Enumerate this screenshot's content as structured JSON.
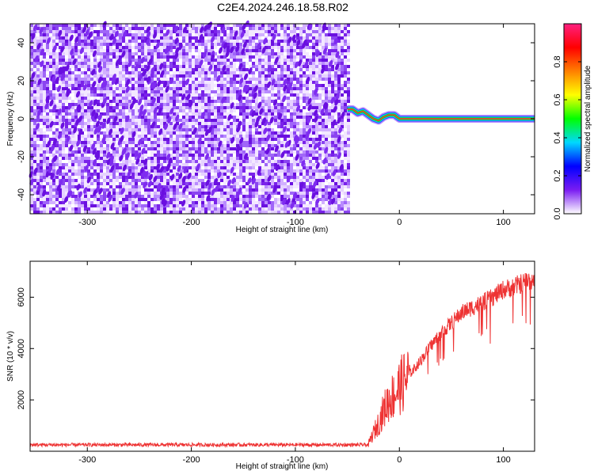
{
  "title": "C2E4.2024.246.18.58.R02",
  "chart_data": [
    {
      "type": "heatmap",
      "xlabel": "Height of straight line (km)",
      "ylabel": "Frequency (Hz)",
      "xlim": [
        -355,
        130
      ],
      "ylim": [
        -50,
        50
      ],
      "xticks": [
        -300,
        -200,
        -100,
        0,
        100
      ],
      "yticks": [
        -40,
        -20,
        0,
        20,
        40
      ],
      "noise_region": {
        "x_start": -355,
        "x_end": -50
      },
      "signal_trace": {
        "x": [
          -50,
          -45,
          -40,
          -35,
          -30,
          -25,
          -20,
          -15,
          -10,
          -5,
          0,
          10,
          30,
          60,
          100,
          130
        ],
        "y": [
          5,
          5,
          3,
          4,
          2,
          0,
          -1,
          1,
          2,
          2,
          0,
          0,
          0,
          0,
          0,
          0
        ]
      },
      "colorbar": {
        "label": "Normalized spectral amplitude",
        "range": [
          0,
          1
        ],
        "ticks": [
          0.0,
          0.2,
          0.4,
          0.6,
          0.8
        ],
        "colormap": "rainbow",
        "colors": [
          "#ffffff",
          "#7a1cf2",
          "#0000ff",
          "#00d8ff",
          "#00ff00",
          "#ffff00",
          "#ff8000",
          "#ff0000",
          "#ff2080"
        ]
      }
    },
    {
      "type": "line",
      "xlabel": "Height of straight line (km)",
      "ylabel": "SNR (10 * v/v)",
      "xlim": [
        -355,
        130
      ],
      "ylim": [
        0,
        7400
      ],
      "xticks": [
        -300,
        -200,
        -100,
        0,
        100
      ],
      "yticks": [
        2000,
        4000,
        6000
      ],
      "line_color": "#ee3333",
      "series": [
        {
          "x": [
            -355,
            -300,
            -250,
            -200,
            -150,
            -100,
            -50,
            -30,
            -25,
            -20,
            -15,
            -10,
            -5,
            0,
            10,
            20,
            30,
            40,
            50,
            60,
            70,
            80,
            90,
            100,
            110,
            120,
            130
          ],
          "values": [
            250,
            250,
            250,
            250,
            250,
            250,
            250,
            250,
            700,
            1100,
            1600,
            2000,
            2200,
            2500,
            3000,
            3500,
            4100,
            4600,
            5000,
            5400,
            5600,
            5800,
            6000,
            6300,
            6400,
            6600,
            6700
          ]
        }
      ]
    }
  ]
}
